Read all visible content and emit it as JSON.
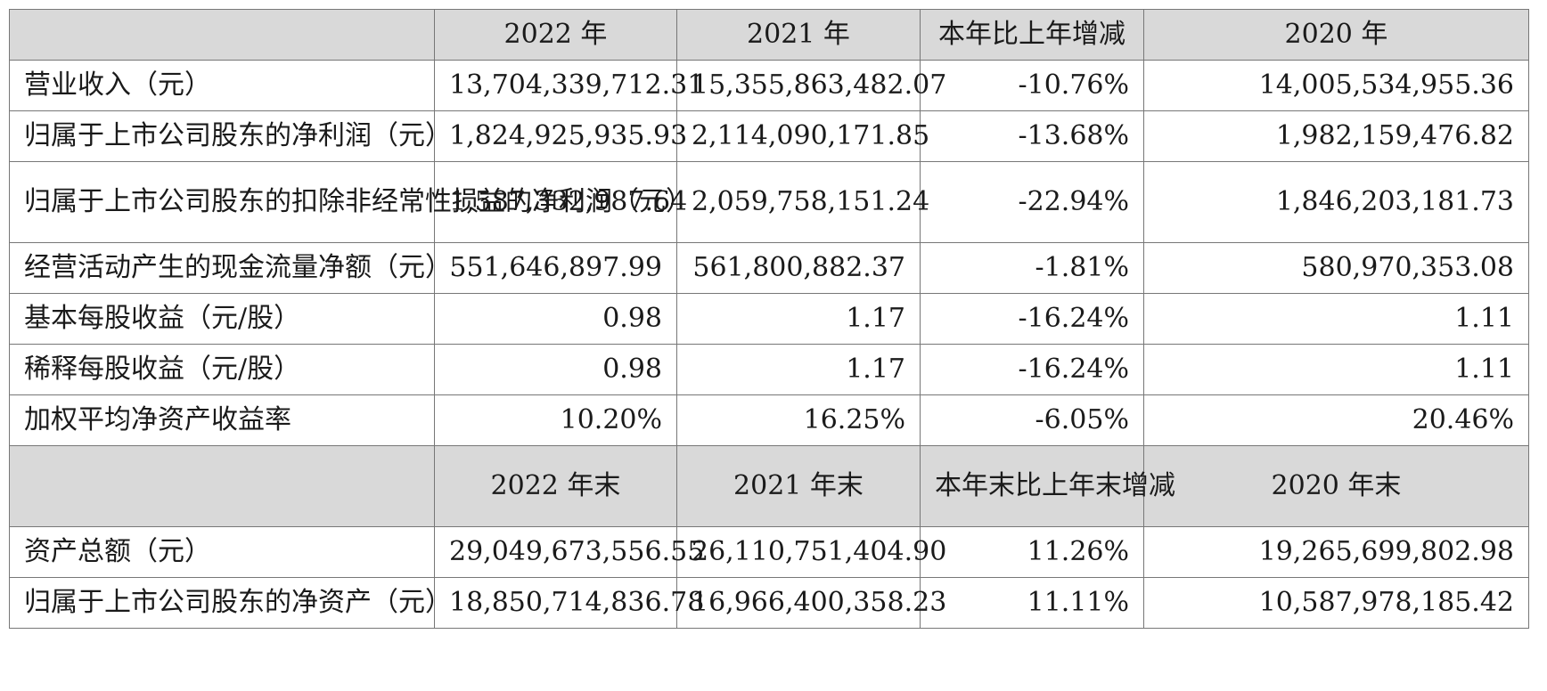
{
  "header1": [
    "",
    "2022 年",
    "2021 年",
    "本年比上年增减",
    "2020 年"
  ],
  "rows1": [
    {
      "label": "营业收入（元）",
      "v2022": "13,704,339,712.31",
      "v2021": "15,355,863,482.07",
      "change": "-10.76%",
      "v2020": "14,005,534,955.36"
    },
    {
      "label": "归属于上市公司股东的净利润（元）",
      "v2022": "1,824,925,935.93",
      "v2021": "2,114,090,171.85",
      "change": "-13.68%",
      "v2020": "1,982,159,476.82"
    },
    {
      "label": "归属于上市公司股东的扣除非经常性损益的净利润（元）",
      "v2022": "1,587,332,987.64",
      "v2021": "2,059,758,151.24",
      "change": "-22.94%",
      "v2020": "1,846,203,181.73"
    },
    {
      "label": "经营活动产生的现金流量净额（元）",
      "v2022": "551,646,897.99",
      "v2021": "561,800,882.37",
      "change": "-1.81%",
      "v2020": "580,970,353.08"
    },
    {
      "label": "基本每股收益（元/股）",
      "v2022": "0.98",
      "v2021": "1.17",
      "change": "-16.24%",
      "v2020": "1.11"
    },
    {
      "label": "稀释每股收益（元/股）",
      "v2022": "0.98",
      "v2021": "1.17",
      "change": "-16.24%",
      "v2020": "1.11"
    },
    {
      "label": "加权平均净资产收益率",
      "v2022": "10.20%",
      "v2021": "16.25%",
      "change": "-6.05%",
      "v2020": "20.46%"
    }
  ],
  "header2": [
    "",
    "2022 年末",
    "2021 年末",
    "本年末比上年末增减",
    "2020 年末"
  ],
  "rows2": [
    {
      "label": "资产总额（元）",
      "v2022": "29,049,673,556.55",
      "v2021": "26,110,751,404.90",
      "change": "11.26%",
      "v2020": "19,265,699,802.98"
    },
    {
      "label": "归属于上市公司股东的净资产（元）",
      "v2022": "18,850,714,836.78",
      "v2021": "16,966,400,358.23",
      "change": "11.11%",
      "v2020": "10,587,978,185.42"
    }
  ]
}
